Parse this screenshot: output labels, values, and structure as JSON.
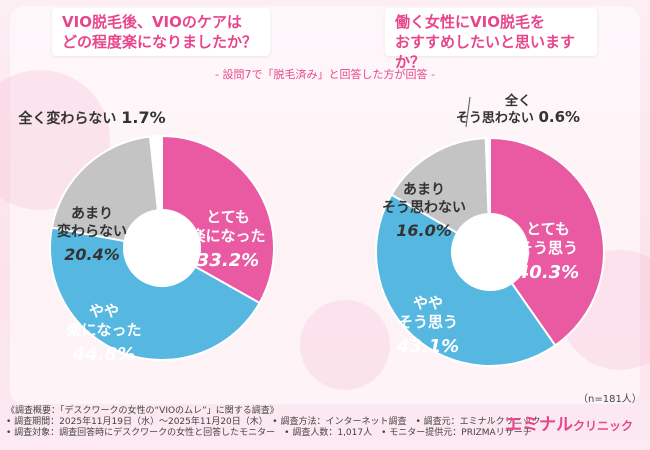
{
  "subtitle": "- 設問7で「脱毛済み」と回答した方が回答 -",
  "n_note": "（n=181人）",
  "brand": {
    "main": "エミナル",
    "sub": "クリニック"
  },
  "footer": {
    "line1": "《調査概要：「デスクワークの女性の“VIOのムレ”」に関する調査》",
    "line2": "• 調査期間：2025年11月19日（水）〜2025年11月20日（木）　• 調査方法：インターネット調査　• 調査元：エミナルクリニック",
    "line3": "• 調査対象：調査回答時にデスクワークの女性と回答したモニター　• 調査人数：1,017人　• モニター提供元：PRIZMAリサーチ"
  },
  "colors": {
    "pink": "#e95aa3",
    "blue": "#56b8e0",
    "gray": "#c4c4c4",
    "accent": "#e8468c"
  },
  "chart_data": [
    {
      "type": "pie",
      "title": [
        "VIO脱毛後、VIOのケアは",
        "どの程度楽になりましたか？"
      ],
      "slices": [
        {
          "label": [
            "とても",
            "楽になった"
          ],
          "value": 33.2,
          "pct": "33.2%",
          "color": "#e95aa3"
        },
        {
          "label": [
            "やや",
            "楽になった"
          ],
          "value": 44.8,
          "pct": "44.8%",
          "color": "#56b8e0"
        },
        {
          "label": [
            "あまり",
            "変わらない"
          ],
          "value": 20.4,
          "pct": "20.4%",
          "color": "#c4c4c4"
        },
        {
          "label": [
            "全く変わらない"
          ],
          "value": 1.7,
          "pct": "1.7%",
          "color": "#ffffff"
        }
      ]
    },
    {
      "type": "pie",
      "title": [
        "働く女性にVIO脱毛を",
        "おすすめしたいと思いますか？"
      ],
      "slices": [
        {
          "label": [
            "とても",
            "そう思う"
          ],
          "value": 40.3,
          "pct": "40.3%",
          "color": "#e95aa3"
        },
        {
          "label": [
            "やや",
            "そう思う"
          ],
          "value": 43.1,
          "pct": "43.1%",
          "color": "#56b8e0"
        },
        {
          "label": [
            "あまり",
            "そう思わない"
          ],
          "value": 16.0,
          "pct": "16.0%",
          "color": "#c4c4c4"
        },
        {
          "label": [
            "全く",
            "そう思わない"
          ],
          "value": 0.6,
          "pct": "0.6%",
          "color": "#ffffff"
        }
      ]
    }
  ]
}
